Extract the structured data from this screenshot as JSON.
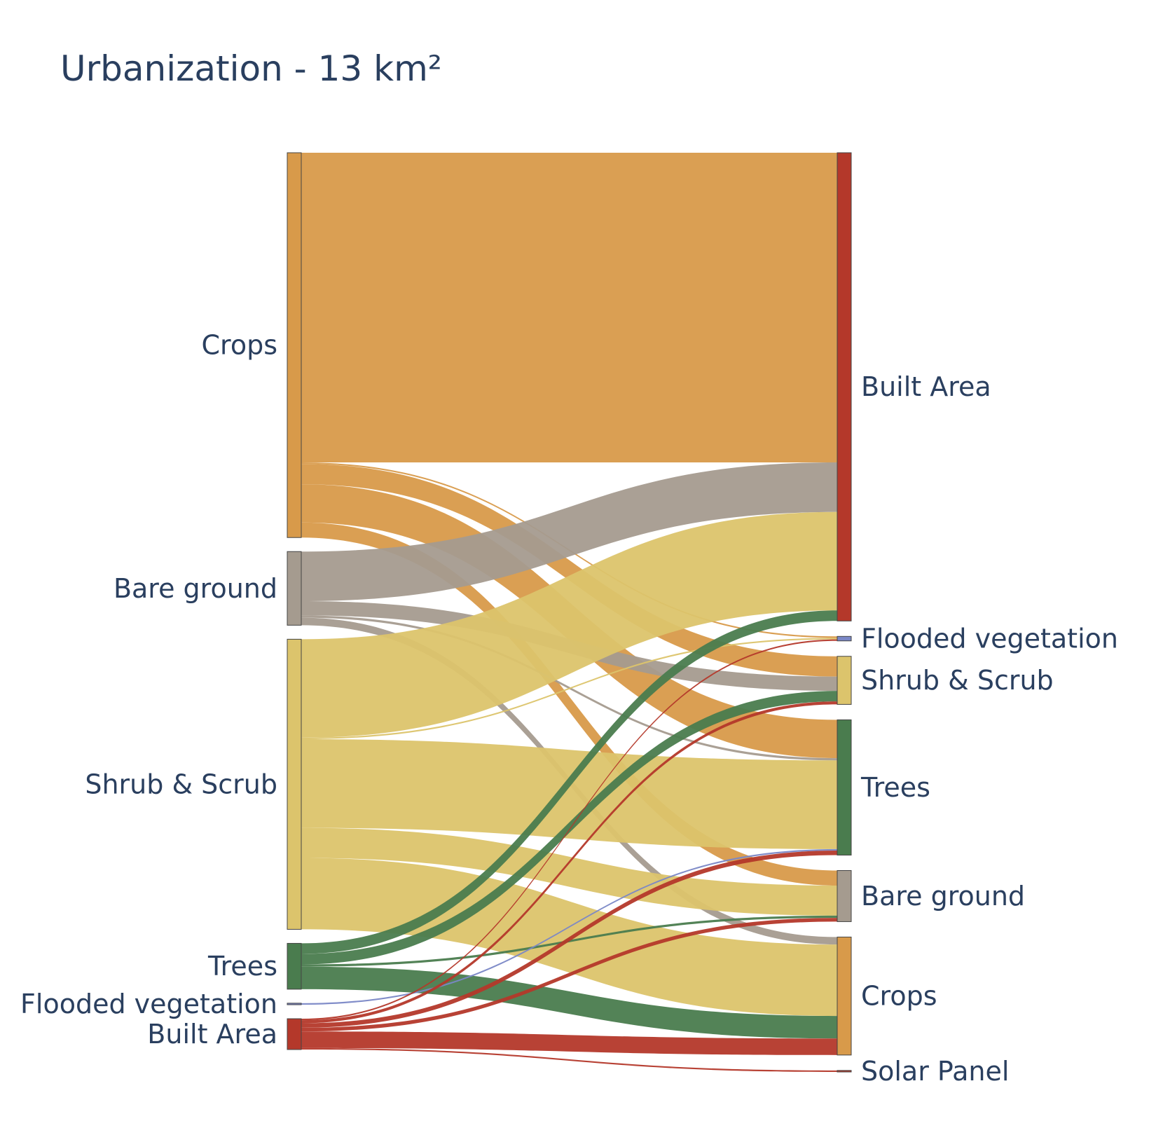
{
  "chart_data": {
    "type": "sankey",
    "title": "Urbanization - 13 km²",
    "left_nodes": [
      {
        "name": "Crops",
        "color": "#d89a4a"
      },
      {
        "name": "Bare ground",
        "color": "#a59b8f"
      },
      {
        "name": "Shrub & Scrub",
        "color": "#dcc46c"
      },
      {
        "name": "Trees",
        "color": "#4a7c4e"
      },
      {
        "name": "Flooded vegetation",
        "color": "#7a87c6"
      },
      {
        "name": "Built Area",
        "color": "#b4382a"
      }
    ],
    "right_nodes": [
      {
        "name": "Built Area",
        "color": "#b4382a"
      },
      {
        "name": "Flooded vegetation",
        "color": "#7a87c6"
      },
      {
        "name": "Shrub & Scrub",
        "color": "#dcc46c"
      },
      {
        "name": "Trees",
        "color": "#4a7c4e"
      },
      {
        "name": "Bare ground",
        "color": "#a59b8f"
      },
      {
        "name": "Crops",
        "color": "#d89a4a"
      },
      {
        "name": "Solar Panel",
        "color": "#b4382a"
      }
    ],
    "unit": "km²",
    "links": [
      {
        "source": "Crops",
        "target": "Built Area",
        "value": 4.12
      },
      {
        "source": "Crops",
        "target": "Flooded vegetation",
        "value": 0.02
      },
      {
        "source": "Crops",
        "target": "Shrub & Scrub",
        "value": 0.27
      },
      {
        "source": "Crops",
        "target": "Trees",
        "value": 0.51
      },
      {
        "source": "Crops",
        "target": "Bare ground",
        "value": 0.2
      },
      {
        "source": "Bare ground",
        "target": "Built Area",
        "value": 0.66
      },
      {
        "source": "Bare ground",
        "target": "Shrub & Scrub",
        "value": 0.19
      },
      {
        "source": "Bare ground",
        "target": "Trees",
        "value": 0.03
      },
      {
        "source": "Bare ground",
        "target": "Crops",
        "value": 0.1
      },
      {
        "source": "Shrub & Scrub",
        "target": "Built Area",
        "value": 1.31
      },
      {
        "source": "Shrub & Scrub",
        "target": "Flooded vegetation",
        "value": 0.02
      },
      {
        "source": "Shrub & Scrub",
        "target": "Trees",
        "value": 1.18
      },
      {
        "source": "Shrub & Scrub",
        "target": "Bare ground",
        "value": 0.4
      },
      {
        "source": "Shrub & Scrub",
        "target": "Crops",
        "value": 0.95
      },
      {
        "source": "Trees",
        "target": "Built Area",
        "value": 0.14
      },
      {
        "source": "Trees",
        "target": "Shrub & Scrub",
        "value": 0.14
      },
      {
        "source": "Trees",
        "target": "Bare ground",
        "value": 0.03
      },
      {
        "source": "Trees",
        "target": "Crops",
        "value": 0.3
      },
      {
        "source": "Flooded vegetation",
        "target": "Trees",
        "value": 0.02
      },
      {
        "source": "Built Area",
        "target": "Flooded vegetation",
        "value": 0.02
      },
      {
        "source": "Built Area",
        "target": "Shrub & Scrub",
        "value": 0.04
      },
      {
        "source": "Built Area",
        "target": "Trees",
        "value": 0.06
      },
      {
        "source": "Built Area",
        "target": "Bare ground",
        "value": 0.05
      },
      {
        "source": "Built Area",
        "target": "Crops",
        "value": 0.22
      },
      {
        "source": "Built Area",
        "target": "Solar Panel",
        "value": 0.02
      }
    ]
  }
}
